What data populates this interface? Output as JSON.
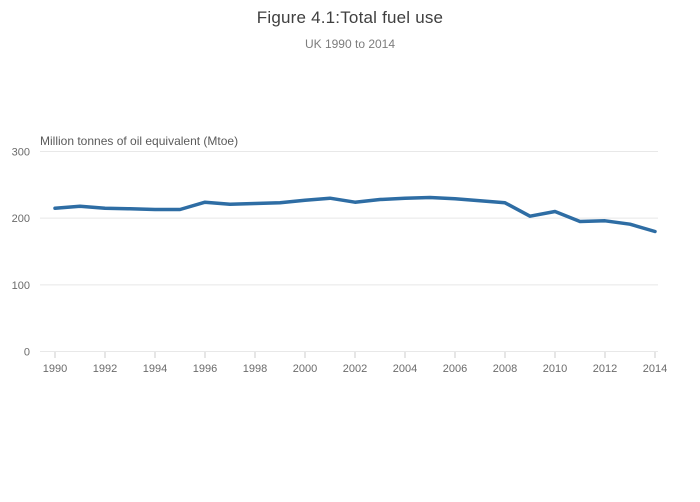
{
  "header": {
    "title": "Figure 4.1:Total fuel use",
    "subtitle": "UK 1990 to 2014"
  },
  "chart_data": {
    "type": "line",
    "title": "Figure 4.1:Total fuel use",
    "subtitle": "UK 1990 to 2014",
    "xlabel": "",
    "ylabel": "Million tonnes of oil equivalent (Mtoe)",
    "x": [
      1990,
      1991,
      1992,
      1993,
      1994,
      1995,
      1996,
      1997,
      1998,
      1999,
      2000,
      2001,
      2002,
      2003,
      2004,
      2005,
      2006,
      2007,
      2008,
      2009,
      2010,
      2011,
      2012,
      2013,
      2014
    ],
    "series": [
      {
        "name": "Total fuel use",
        "values": [
          215,
          218,
          215,
          214,
          213,
          213,
          224,
          221,
          222,
          223,
          227,
          230,
          224,
          228,
          230,
          231,
          229,
          226,
          223,
          203,
          210,
          195,
          196,
          191,
          180
        ],
        "color": "#2e6da4"
      }
    ],
    "ylim": [
      0,
      300
    ],
    "yticks": [
      0,
      100,
      200,
      300
    ],
    "xticks": [
      1990,
      1992,
      1994,
      1996,
      1998,
      2000,
      2002,
      2004,
      2006,
      2008,
      2010,
      2012,
      2014
    ],
    "grid": true,
    "legend_position": "none"
  },
  "style": {
    "line_color": "#2e6da4",
    "grid_color": "#e8e8e8",
    "tick_mark_color": "#cccccc",
    "tick_label_color": "#6b6b6b",
    "title_color": "#3f3f3f",
    "subtitle_color": "#7d7d7d",
    "axis_title_color": "#5a5a5a",
    "background": "#ffffff"
  }
}
